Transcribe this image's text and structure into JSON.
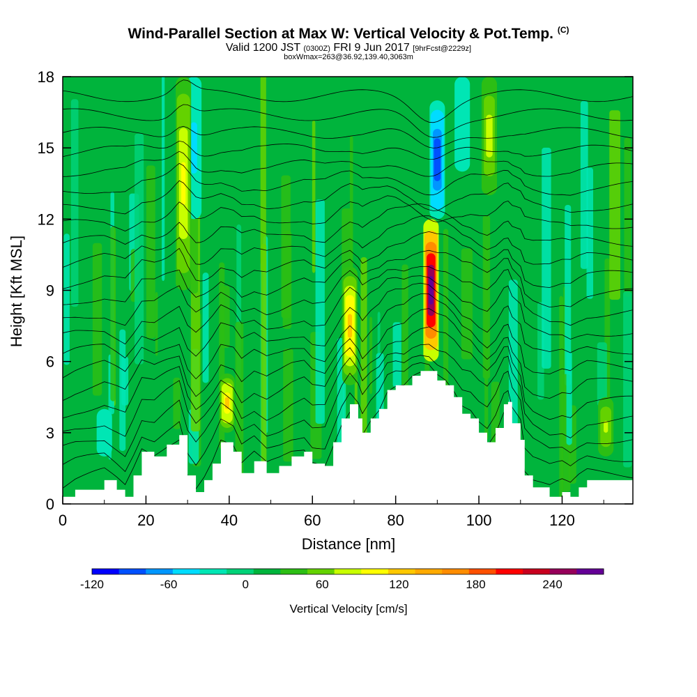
{
  "title": "Wind-Parallel Section at Max W: Vertical Velocity & Pot.Temp.",
  "title_mark": "(C)",
  "subtitle_valid": "Valid 1200 JST",
  "subtitle_utc": "(0300Z)",
  "subtitle_date": "FRI 9 Jun 2017",
  "subtitle_fcst": "[9hrFcst@2229z]",
  "subtitle_box": "boxWmax=263@36.92,139.40,3063m",
  "chart_data": {
    "type": "heatmap",
    "xlabel": "Distance [nm]",
    "ylabel": "Height [Kft MSL]",
    "xlim": [
      0,
      137
    ],
    "ylim": [
      0,
      18
    ],
    "x_ticks": [
      "0",
      "20",
      "40",
      "60",
      "80",
      "100",
      "120"
    ],
    "y_ticks": [
      "0",
      "3",
      "6",
      "9",
      "12",
      "15",
      "18"
    ],
    "colorbar": {
      "label": "Vertical Velocity [cm/s]",
      "tick_labels": [
        "-120",
        "-60",
        "0",
        "60",
        "120",
        "180",
        "240"
      ],
      "min": -120,
      "max": 280,
      "step": 20,
      "colors": [
        "#0000ff",
        "#0050ff",
        "#0096ff",
        "#00dcff",
        "#00e6b4",
        "#00d278",
        "#00b43c",
        "#2cbe14",
        "#64d200",
        "#c8ff00",
        "#ffff00",
        "#ffc800",
        "#ffaa00",
        "#ff8c00",
        "#ff5000",
        "#ff0000",
        "#c8001e",
        "#96005a",
        "#640096"
      ]
    },
    "updrafts": [
      {
        "x": 29,
        "y_top": 18,
        "y_bottom": 9,
        "w_max": 90
      },
      {
        "x": 39.5,
        "y_top": 5.5,
        "y_bottom": 3,
        "w_max": 100
      },
      {
        "x": 69,
        "y_top": 10,
        "y_bottom": 5,
        "w_max": 110
      },
      {
        "x": 88.5,
        "y_top": 12,
        "y_bottom": 6,
        "w_max": 263
      },
      {
        "x": 102.5,
        "y_top": 18,
        "y_bottom": 13,
        "w_max": 70
      },
      {
        "x": 130.5,
        "y_top": 4.5,
        "y_bottom": 2,
        "w_max": 60
      }
    ],
    "downdrafts": [
      {
        "x": 31.5,
        "y_top": 18,
        "y_bottom": 12,
        "w_min": -50
      },
      {
        "x": 90,
        "y_top": 17,
        "y_bottom": 12,
        "w_min": -100
      },
      {
        "x": 96,
        "y_top": 18,
        "y_bottom": 14,
        "w_min": -40
      },
      {
        "x": 10,
        "y_top": 4,
        "y_bottom": 2,
        "w_min": -40
      }
    ],
    "terrain_height_kft": [
      [
        0,
        0.3
      ],
      [
        3,
        0.6
      ],
      [
        10,
        1
      ],
      [
        13,
        0.6
      ],
      [
        15,
        0.3
      ],
      [
        17,
        1.2
      ],
      [
        19,
        2.2
      ],
      [
        22,
        2.0
      ],
      [
        25,
        2.5
      ],
      [
        28,
        2.9
      ],
      [
        30,
        1.2
      ],
      [
        32,
        0.5
      ],
      [
        34,
        1.0
      ],
      [
        36,
        1.7
      ],
      [
        38,
        2.6
      ],
      [
        41,
        2.2
      ],
      [
        43,
        1.3
      ],
      [
        46,
        1.8
      ],
      [
        49,
        1.3
      ],
      [
        52,
        1.6
      ],
      [
        55,
        2.0
      ],
      [
        58,
        2.2
      ],
      [
        60,
        1.7
      ],
      [
        63,
        1.6
      ],
      [
        65,
        2.6
      ],
      [
        67,
        3.6
      ],
      [
        69,
        4.2
      ],
      [
        71,
        3.6
      ],
      [
        72,
        3.0
      ],
      [
        74,
        3.6
      ],
      [
        76,
        4.0
      ],
      [
        78,
        4.8
      ],
      [
        80,
        5.0
      ],
      [
        82,
        5.0
      ],
      [
        84,
        5.4
      ],
      [
        86,
        5.6
      ],
      [
        88,
        5.6
      ],
      [
        90,
        5.2
      ],
      [
        92,
        5.0
      ],
      [
        94,
        4.5
      ],
      [
        96,
        3.8
      ],
      [
        98,
        3.6
      ],
      [
        100,
        3.0
      ],
      [
        102,
        2.6
      ],
      [
        104,
        3.2
      ],
      [
        106,
        4.2
      ],
      [
        107,
        4.3
      ],
      [
        108,
        3.4
      ],
      [
        110,
        2.7
      ],
      [
        111,
        1.2
      ],
      [
        113,
        0.7
      ],
      [
        117,
        0.3
      ],
      [
        120,
        0.5
      ],
      [
        122,
        0.3
      ],
      [
        124,
        0.7
      ],
      [
        126,
        1.0
      ],
      [
        137,
        1.0
      ]
    ],
    "theta_contours": [
      {
        "label": "",
        "base_kft": 0.4
      },
      {
        "label": "",
        "base_kft": 1.2
      },
      {
        "label": "",
        "base_kft": 2.0
      },
      {
        "label": "",
        "base_kft": 2.8
      },
      {
        "label": "",
        "base_kft": 3.6
      },
      {
        "label": "",
        "base_kft": 4.4
      },
      {
        "label": "",
        "base_kft": 5.2
      },
      {
        "label": "",
        "base_kft": 6.0
      },
      {
        "label": "",
        "base_kft": 6.8
      },
      {
        "label": "",
        "base_kft": 7.6
      },
      {
        "label": "",
        "base_kft": 8.4
      },
      {
        "label": "",
        "base_kft": 9.2
      },
      {
        "label": "",
        "base_kft": 10.0
      },
      {
        "label": "",
        "base_kft": 10.8
      },
      {
        "label": "",
        "base_kft": 11.6
      },
      {
        "label": "",
        "base_kft": 12.4
      },
      {
        "label": "",
        "base_kft": 13.2
      },
      {
        "label": "",
        "base_kft": 14.0
      },
      {
        "label": "",
        "base_kft": 14.8
      },
      {
        "label": "",
        "base_kft": 15.6
      },
      {
        "label": "",
        "base_kft": 16.4
      },
      {
        "label": "",
        "base_kft": 17.2
      }
    ]
  }
}
